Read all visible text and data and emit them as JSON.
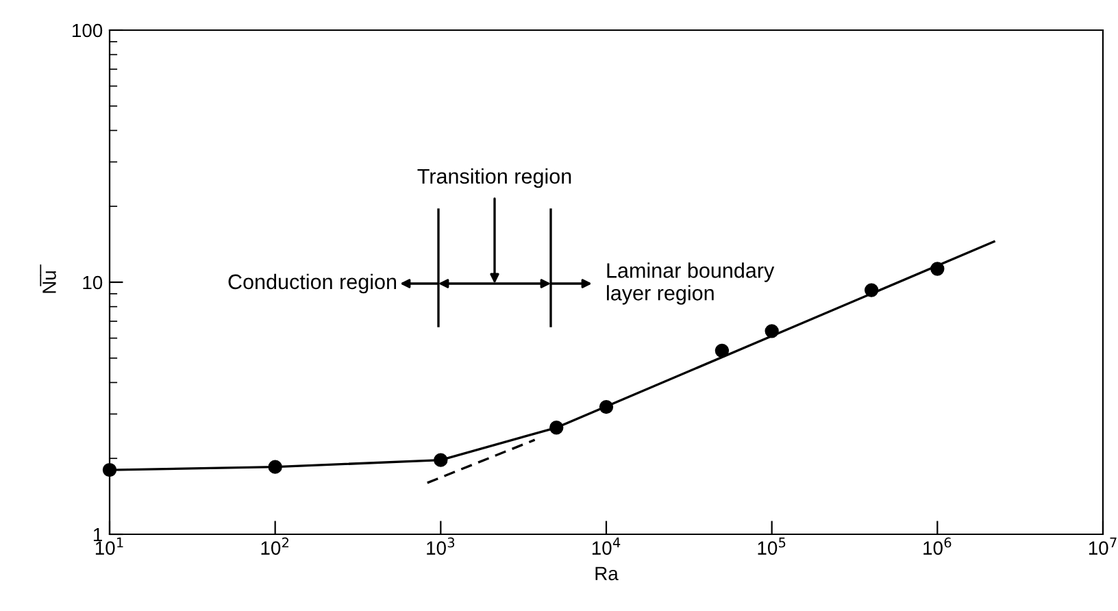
{
  "chart_data": {
    "type": "scatter",
    "xlabel": "Ra",
    "ylabel": "N̅u̅",
    "log": "xy",
    "xlim": [
      10,
      10000000
    ],
    "ylim": [
      1,
      100
    ],
    "xticks": [
      {
        "value": 10,
        "label": "10$^{1}$"
      },
      {
        "value": 100,
        "label": "10$^{2}$"
      },
      {
        "value": 1000,
        "label": "10$^{3}$"
      },
      {
        "value": 10000,
        "label": "10$^{4}$"
      },
      {
        "value": 100000,
        "label": "10$^{5}$"
      },
      {
        "value": 1000000,
        "label": "10$^{6}$"
      },
      {
        "value": 10000000,
        "label": "10$^{7}$"
      }
    ],
    "yticks": [
      1,
      10,
      100
    ],
    "grid": false,
    "series": [
      {
        "marker": "circle",
        "color": "#000000",
        "x": [
          10,
          100,
          1000,
          5000,
          10000,
          50000,
          100000,
          400000,
          1000000
        ],
        "values": [
          1.8,
          1.85,
          1.97,
          2.65,
          3.2,
          5.35,
          6.4,
          9.3,
          11.3
        ]
      },
      {
        "type": "line",
        "marker": "none",
        "color": "#000000",
        "line_style": "solid",
        "x": [
          10,
          100,
          1000,
          5000
        ],
        "values": [
          1.8,
          1.85,
          1.97,
          2.65
        ]
      },
      {
        "type": "line",
        "marker": "none",
        "color": "#000000",
        "line_style": "solid",
        "x": [
          5000,
          2200000
        ],
        "values": [
          2.65,
          14.5
        ]
      },
      {
        "type": "line",
        "marker": "none",
        "color": "#000000",
        "line_style": "dashed",
        "x": [
          830,
          3700
        ],
        "values": [
          1.6,
          2.37
        ]
      }
    ],
    "annotations": [
      "Conduction region",
      "Transition region",
      "Laminar boundary\nlayer region"
    ]
  }
}
